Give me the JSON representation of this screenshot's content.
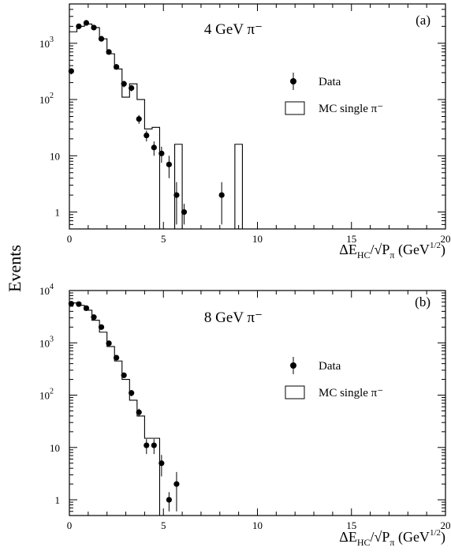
{
  "figure": {
    "ylabel": "Events",
    "xlabel_main": "ΔE",
    "xlabel_sub": "HC",
    "xlabel_slash": "/√P",
    "xlabel_sub2": "π",
    "xlabel_unit": " (GeV",
    "xlabel_unit_sup": "1/2",
    "xlabel_unit_end": ")"
  },
  "chart_data": [
    {
      "type": "scatter",
      "panel_tag": "(a)",
      "title": "4 GeV  π⁻",
      "xlim": [
        0,
        20
      ],
      "ylim": [
        0.5,
        5000
      ],
      "yscale": "log",
      "x_ticks": [
        0,
        5,
        10,
        15,
        20
      ],
      "y_ticks": [
        {
          "value": 1,
          "label": "1"
        },
        {
          "value": 10,
          "label": "10"
        },
        {
          "value": 100,
          "label": "10",
          "sup": "2"
        },
        {
          "value": 1000,
          "label": "10",
          "sup": "3"
        }
      ],
      "legend": {
        "data_label": "Data",
        "mc_label": "MC single π⁻",
        "placement": "right"
      },
      "data_points": [
        {
          "x": 0.1,
          "y": 320,
          "err": 40
        },
        {
          "x": 0.5,
          "y": 2000,
          "err": 120
        },
        {
          "x": 0.9,
          "y": 2300,
          "err": 130
        },
        {
          "x": 1.3,
          "y": 1900,
          "err": 110
        },
        {
          "x": 1.7,
          "y": 1200,
          "err": 90
        },
        {
          "x": 2.1,
          "y": 700,
          "err": 60
        },
        {
          "x": 2.5,
          "y": 380,
          "err": 40
        },
        {
          "x": 2.9,
          "y": 190,
          "err": 25
        },
        {
          "x": 3.3,
          "y": 160,
          "err": 20
        },
        {
          "x": 3.7,
          "y": 45,
          "err": 8
        },
        {
          "x": 4.1,
          "y": 23,
          "err": 5
        },
        {
          "x": 4.5,
          "y": 14,
          "err": 4
        },
        {
          "x": 4.9,
          "y": 11,
          "err": 3.5
        },
        {
          "x": 5.3,
          "y": 7,
          "err": 3
        },
        {
          "x": 5.7,
          "y": 2,
          "err": 1.4
        },
        {
          "x": 6.1,
          "y": 1,
          "err": 0.4
        },
        {
          "x": 8.1,
          "y": 2,
          "err": 1.4
        }
      ],
      "mc_bin_edges": [
        0,
        0.4,
        0.8,
        1.2,
        1.6,
        2.0,
        2.4,
        2.8,
        3.2,
        3.6,
        4.0,
        4.4,
        4.8,
        5.2,
        5.6,
        6.0,
        6.4,
        8.8,
        9.2
      ],
      "mc_values": [
        1600,
        2000,
        2200,
        1900,
        1200,
        650,
        350,
        110,
        190,
        100,
        30,
        32,
        0,
        0,
        16,
        0,
        0,
        16
      ]
    },
    {
      "type": "scatter",
      "panel_tag": "(b)",
      "title": "8 GeV  π⁻",
      "xlim": [
        0,
        20
      ],
      "ylim": [
        0.5,
        10000
      ],
      "yscale": "log",
      "x_ticks": [
        0,
        5,
        10,
        15,
        20
      ],
      "y_ticks": [
        {
          "value": 1,
          "label": "1"
        },
        {
          "value": 10,
          "label": "10"
        },
        {
          "value": 100,
          "label": "10",
          "sup": "2"
        },
        {
          "value": 1000,
          "label": "10",
          "sup": "3"
        },
        {
          "value": 10000,
          "label": "10",
          "sup": "4"
        }
      ],
      "legend": {
        "data_label": "Data",
        "mc_label": "MC single π⁻",
        "placement": "right"
      },
      "data_points": [
        {
          "x": 0.1,
          "y": 5600,
          "err": 300
        },
        {
          "x": 0.5,
          "y": 5500,
          "err": 300
        },
        {
          "x": 0.9,
          "y": 4600,
          "err": 250
        },
        {
          "x": 1.3,
          "y": 3100,
          "err": 180
        },
        {
          "x": 1.7,
          "y": 2000,
          "err": 130
        },
        {
          "x": 2.1,
          "y": 980,
          "err": 70
        },
        {
          "x": 2.5,
          "y": 520,
          "err": 45
        },
        {
          "x": 2.9,
          "y": 240,
          "err": 28
        },
        {
          "x": 3.3,
          "y": 110,
          "err": 15
        },
        {
          "x": 3.7,
          "y": 47,
          "err": 8
        },
        {
          "x": 4.1,
          "y": 11,
          "err": 3.5
        },
        {
          "x": 4.5,
          "y": 11,
          "err": 3.5
        },
        {
          "x": 4.9,
          "y": 5,
          "err": 2.2
        },
        {
          "x": 5.3,
          "y": 1,
          "err": 0.4
        },
        {
          "x": 5.7,
          "y": 2,
          "err": 1.4
        }
      ],
      "mc_bin_edges": [
        0,
        0.4,
        0.8,
        1.2,
        1.6,
        2.0,
        2.4,
        2.8,
        3.2,
        3.6,
        4.0,
        4.8
      ],
      "mc_values": [
        5800,
        5200,
        4200,
        2700,
        1600,
        850,
        450,
        200,
        80,
        40,
        15
      ]
    }
  ]
}
